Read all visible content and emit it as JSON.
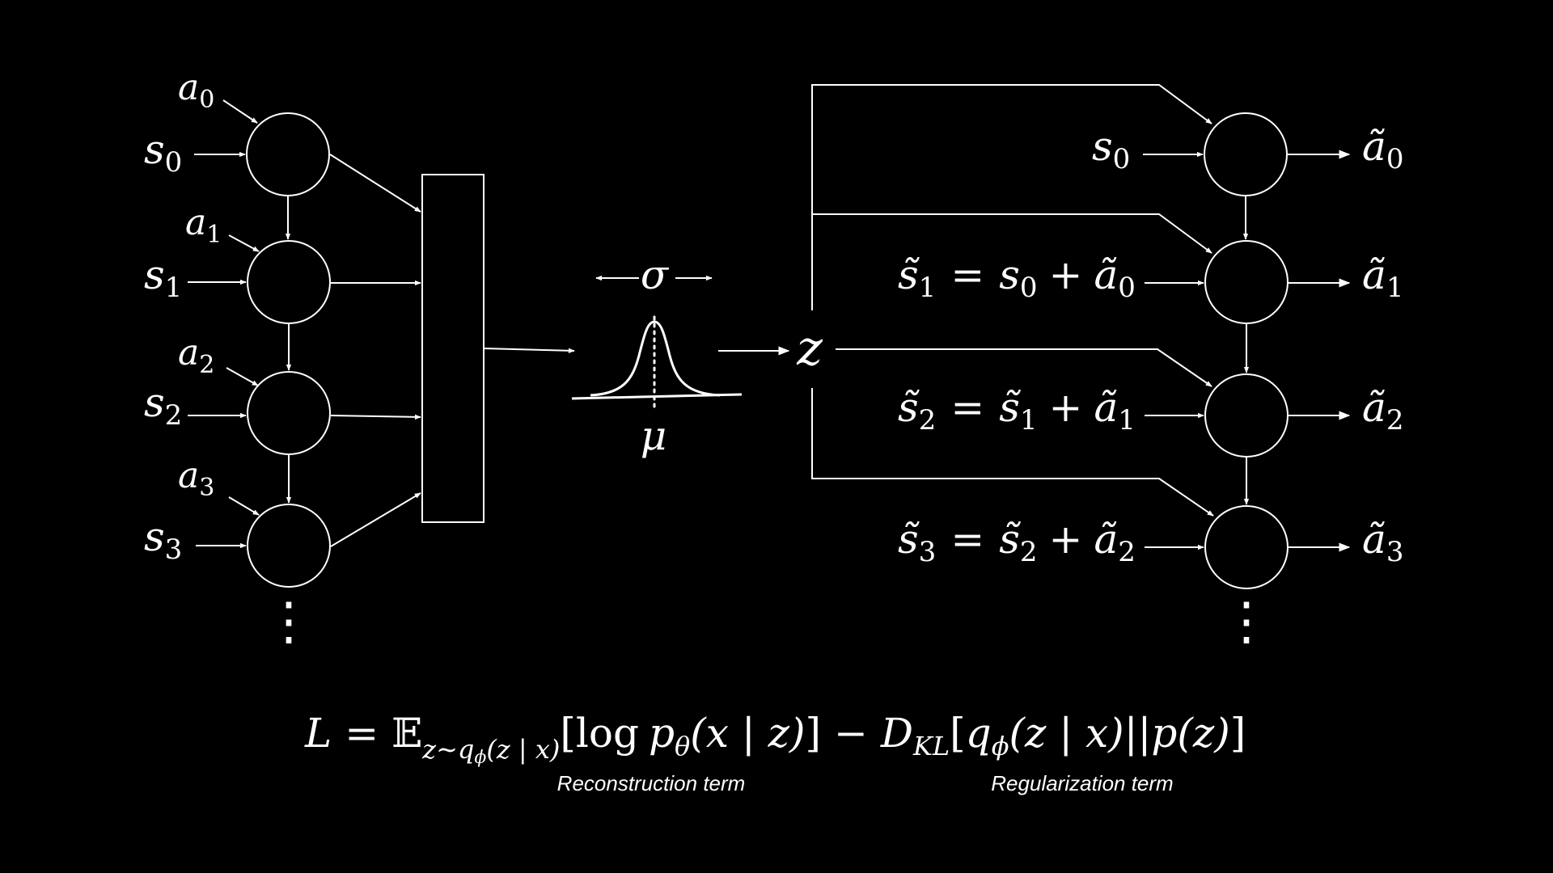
{
  "colors": {
    "background": "#000000",
    "foreground": "#ffffff"
  },
  "encoder": {
    "inputs": [
      {
        "action": "a",
        "action_index": "0",
        "state": "s",
        "state_index": "0"
      },
      {
        "action": "a",
        "action_index": "1",
        "state": "s",
        "state_index": "1"
      },
      {
        "action": "a",
        "action_index": "2",
        "state": "s",
        "state_index": "2"
      },
      {
        "action": "a",
        "action_index": "3",
        "state": "s",
        "state_index": "3"
      }
    ],
    "continuation": "⋮"
  },
  "latent": {
    "sigma": "σ",
    "mu": "μ",
    "z": "z"
  },
  "decoder": {
    "rows": [
      {
        "lhs": "s",
        "lhs_index": "0",
        "output": "ã",
        "output_index": "0"
      },
      {
        "lhs": "s̃",
        "lhs_index": "1",
        "eq": "=",
        "t1": "s",
        "t1_index": "0",
        "plus": "+",
        "t2": "ã",
        "t2_index": "0",
        "output": "ã",
        "output_index": "1"
      },
      {
        "lhs": "s̃",
        "lhs_index": "2",
        "eq": "=",
        "t1": "s̃",
        "t1_index": "1",
        "plus": "+",
        "t2": "ã",
        "t2_index": "1",
        "output": "ã",
        "output_index": "2"
      },
      {
        "lhs": "s̃",
        "lhs_index": "3",
        "eq": "=",
        "t1": "s̃",
        "t1_index": "2",
        "plus": "+",
        "t2": "ã",
        "t2_index": "2",
        "output": "ã",
        "output_index": "3"
      }
    ],
    "continuation": "⋮"
  },
  "loss": {
    "lhs": "L",
    "eq": "=",
    "expect": "𝔼",
    "expect_sub": "z∼q",
    "expect_sub_phi": "ϕ",
    "expect_sub_arg": "(z | x)",
    "bracket_open": "[",
    "log": "log",
    "p": "p",
    "p_sub": "θ",
    "p_arg": "(x | z)",
    "bracket_close": "]",
    "minus": "−",
    "D": "D",
    "D_sub": "KL",
    "kl_open": "[",
    "q": "q",
    "q_sub": "ϕ",
    "q_arg": "(z | x)",
    "sep": "||",
    "pz": "p(z)",
    "kl_close": "]"
  },
  "captions": {
    "reconstruction": "Reconstruction term",
    "regularization": "Regularization term"
  }
}
